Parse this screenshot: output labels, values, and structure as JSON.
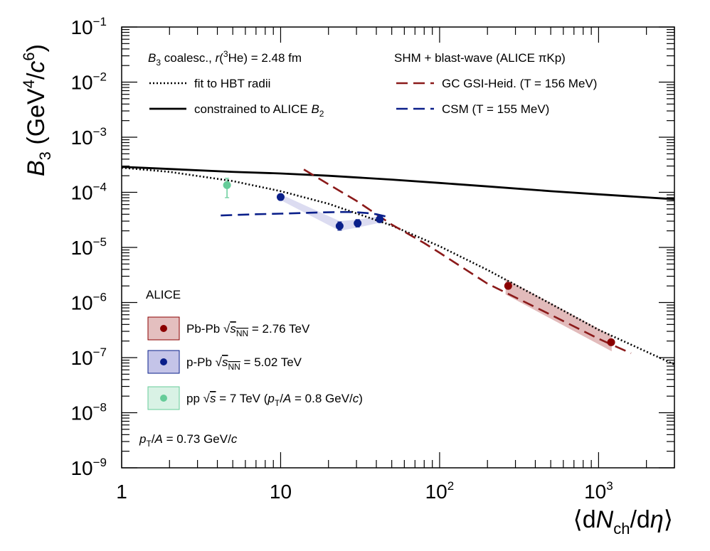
{
  "chart_data": {
    "type": "scatter",
    "xscale": "log",
    "yscale": "log",
    "xlim": [
      1,
      3000
    ],
    "ylim": [
      1e-09,
      0.1
    ],
    "xlabel": {
      "pre": "⟨d",
      "N": "N",
      "sub": "ch",
      "post": "/d",
      "eta": "η",
      "close": "⟩"
    },
    "ylabel": {
      "B": "B",
      "sub": "3",
      "pre": " (GeV",
      "sup1": "4",
      "mid": "/",
      "c": "c",
      "sup2": "6",
      "close": ")"
    },
    "x_ticks": [
      {
        "value": 1,
        "label": "1"
      },
      {
        "value": 10,
        "label": "10"
      },
      {
        "value": 100,
        "label": "10",
        "sup": "2"
      },
      {
        "value": 1000,
        "label": "10",
        "sup": "3"
      }
    ],
    "y_ticks": [
      {
        "value": 1e-09,
        "base": "10",
        "sup": "−9"
      },
      {
        "value": 1e-08,
        "base": "10",
        "sup": "−8"
      },
      {
        "value": 1e-07,
        "base": "10",
        "sup": "−7"
      },
      {
        "value": 1e-06,
        "base": "10",
        "sup": "−6"
      },
      {
        "value": 1e-05,
        "base": "10",
        "sup": "−5"
      },
      {
        "value": 0.0001,
        "base": "10",
        "sup": "−4"
      },
      {
        "value": 0.001,
        "base": "10",
        "sup": "−3"
      },
      {
        "value": 0.01,
        "base": "10",
        "sup": "−2"
      },
      {
        "value": 0.1,
        "base": "10",
        "sup": "−1"
      }
    ],
    "curves": [
      {
        "id": "hbt",
        "legend": "fit to HBT radii",
        "color": "#000000",
        "style": "dotted",
        "x": [
          1,
          2,
          5,
          10,
          20,
          50,
          100,
          200,
          500,
          1000,
          3000
        ],
        "y": [
          0.00028,
          0.000235,
          0.00016,
          0.000105,
          6.2e-05,
          2.5e-05,
          1.05e-05,
          3.9e-06,
          9.5e-07,
          3.2e-07,
          7.5e-08
        ]
      },
      {
        "id": "b2",
        "legend": "constrained to ALICE B2",
        "color": "#000000",
        "style": "solid",
        "x": [
          1,
          2,
          5,
          10,
          20,
          50,
          100,
          200,
          500,
          1000,
          3000
        ],
        "y": [
          0.00029,
          0.000265,
          0.000235,
          0.00022,
          0.0002,
          0.00017,
          0.000148,
          0.000128,
          0.000105,
          9.2e-05,
          7.5e-05
        ]
      },
      {
        "id": "gsi",
        "legend": "GC GSI-Heid. (T = 156 MeV)",
        "color": "#8b1a1a",
        "style": "dashed",
        "x": [
          14,
          20,
          30,
          50,
          80,
          100,
          200,
          500,
          1000,
          1600
        ],
        "y": [
          0.00026,
          0.00014,
          7e-05,
          2.6e-05,
          1.2e-05,
          8e-06,
          2.2e-06,
          6e-07,
          2.2e-07,
          1.2e-07
        ]
      },
      {
        "id": "csm",
        "legend": "CSM (T = 155 MeV)",
        "color": "#0a1f8a",
        "style": "dashed",
        "x": [
          4.2,
          7,
          10,
          15,
          20,
          25,
          30,
          35,
          40,
          45,
          48
        ],
        "y": [
          3.8e-05,
          4e-05,
          4.1e-05,
          4.25e-05,
          4.35e-05,
          4.4e-05,
          4.35e-05,
          4.2e-05,
          4e-05,
          3.7e-05,
          3.4e-05
        ]
      }
    ],
    "bands": [
      {
        "id": "ppb-band",
        "color": "#3c3cb4",
        "opacity": 0.18,
        "upper": {
          "x": [
            10,
            23.5,
            30.5,
            42
          ],
          "y": [
            9.2e-05,
            3e-05,
            3.2e-05,
            3.7e-05
          ]
        },
        "lower": {
          "x": [
            10,
            23.5,
            30.5,
            42
          ],
          "y": [
            7.2e-05,
            2e-05,
            2.3e-05,
            2.8e-05
          ]
        }
      },
      {
        "id": "pbpb-band",
        "color": "#a52a2a",
        "opacity": 0.32,
        "upper": {
          "x": [
            260,
            1210
          ],
          "y": [
            2.7e-06,
            2.5e-07
          ]
        },
        "lower": {
          "x": [
            260,
            1210
          ],
          "y": [
            1.4e-06,
            1.3e-07
          ]
        }
      }
    ],
    "series": [
      {
        "name": "Pb-Pb",
        "color": "#8b0000",
        "points": [
          {
            "x": 270,
            "y": 2e-06,
            "err": [
              1.8e-06,
              2.2e-06
            ]
          },
          {
            "x": 1200,
            "y": 1.9e-07,
            "err": [
              1.7e-07,
              2.1e-07
            ]
          }
        ]
      },
      {
        "name": "p-Pb",
        "color": "#0a1f8a",
        "points": [
          {
            "x": 10,
            "y": 8.2e-05,
            "err": [
              7.4e-05,
              9e-05
            ]
          },
          {
            "x": 23.5,
            "y": 2.45e-05,
            "err": [
              2.05e-05,
              2.9e-05
            ]
          },
          {
            "x": 30.5,
            "y": 2.75e-05,
            "err": [
              2.35e-05,
              3.2e-05
            ]
          },
          {
            "x": 42,
            "y": 3.25e-05,
            "err": [
              2.9e-05,
              3.6e-05
            ]
          }
        ]
      },
      {
        "name": "pp",
        "color": "#66cc99",
        "points": [
          {
            "x": 4.6,
            "y": 0.000135,
            "err": [
              8e-05,
              0.00018
            ]
          }
        ]
      }
    ],
    "legend_top_left": [
      {
        "id": "coal",
        "parts": [
          {
            "t": "B",
            "i": true
          },
          {
            "t": "3",
            "sub": true
          },
          {
            "t": " coalesc., "
          },
          {
            "t": "r",
            "i": true
          },
          {
            "t": "(",
            "sup": false
          },
          {
            "t": "3",
            "sup": true
          },
          {
            "t": "He) = 2.48 fm"
          }
        ]
      },
      {
        "id": "hbt",
        "parts": [
          {
            "t": "fit to HBT radii"
          }
        ]
      },
      {
        "id": "b2",
        "parts": [
          {
            "t": "constrained to ALICE "
          },
          {
            "t": "B",
            "i": true
          },
          {
            "t": "2",
            "sub": true
          }
        ]
      }
    ],
    "legend_top_right": [
      {
        "id": "shm",
        "parts": [
          {
            "t": "SHM + blast-wave (ALICE πKp)"
          }
        ]
      },
      {
        "id": "gsi",
        "parts": [
          {
            "t": "GC GSI-Heid. (T = 156 MeV)"
          }
        ]
      },
      {
        "id": "csm",
        "parts": [
          {
            "t": "CSM (T = 155 MeV)"
          }
        ]
      }
    ],
    "legend_alice_title": "ALICE",
    "legend_data": [
      {
        "id": "pbpb",
        "fill": "#a52a2a",
        "border": "#8b0000",
        "marker": "#8b0000",
        "parts": [
          {
            "t": "Pb-Pb "
          },
          {
            "t": "√",
            "sqrt": true
          },
          {
            "t": "s",
            "i": true,
            "over": true
          },
          {
            "t": "NN",
            "sub": true,
            "over": true
          },
          {
            "t": " = 2.76 TeV"
          }
        ]
      },
      {
        "id": "ppb",
        "fill": "#3c3cb4",
        "border": "#0a1f8a",
        "marker": "#0a1f8a",
        "parts": [
          {
            "t": "p-Pb "
          },
          {
            "t": "√",
            "sqrt": true
          },
          {
            "t": "s",
            "i": true,
            "over": true
          },
          {
            "t": "NN",
            "sub": true,
            "over": true
          },
          {
            "t": " = 5.02 TeV"
          }
        ]
      },
      {
        "id": "pp",
        "fill": "#66cc99",
        "border": "#66cc99",
        "marker": "#66cc99",
        "parts": [
          {
            "t": "pp "
          },
          {
            "t": "√",
            "sqrt": true
          },
          {
            "t": "s",
            "i": true,
            "over": true
          },
          {
            "t": " = 7 TeV ("
          },
          {
            "t": "p",
            "i": true
          },
          {
            "t": "T",
            "sub": true
          },
          {
            "t": "/"
          },
          {
            "t": "A",
            "i": true
          },
          {
            "t": " = 0.8 GeV/"
          },
          {
            "t": "c",
            "i": true
          },
          {
            "t": ")"
          }
        ]
      }
    ],
    "annotation": {
      "parts": [
        {
          "t": "p",
          "i": true
        },
        {
          "t": "T",
          "sub": true
        },
        {
          "t": "/"
        },
        {
          "t": "A",
          "i": true
        },
        {
          "t": " = 0.73 GeV/"
        },
        {
          "t": "c",
          "i": true
        }
      ]
    }
  }
}
